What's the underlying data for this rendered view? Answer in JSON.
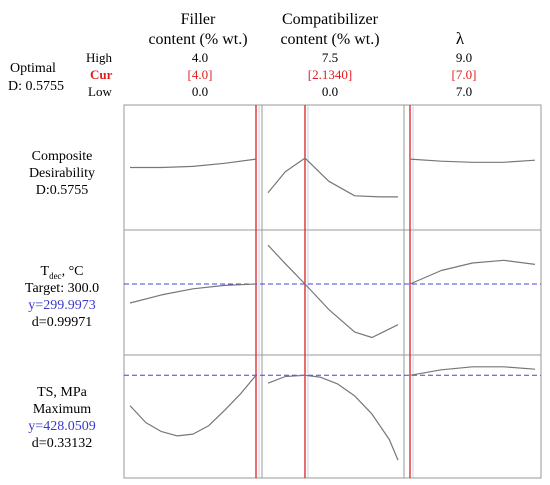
{
  "chart_data": {
    "type": "line",
    "title": "",
    "optimal_label": "Optimal",
    "optimal_d": "D: 0.5755",
    "row_labels": {
      "high": "High",
      "cur": "Cur",
      "low": "Low"
    },
    "factors": [
      {
        "name_line1": "Filler",
        "name_line2": "content (% wt.)",
        "high": "4.0",
        "cur": "[4.0]",
        "low": "0.0",
        "x_min": 0.0,
        "x_max": 4.0,
        "x_cur": 4.0
      },
      {
        "name_line1": "Compatibilizer",
        "name_line2": "content (% wt.)",
        "high": "7.5",
        "cur": "[2.1340]",
        "low": "0.0",
        "x_min": 0.0,
        "x_max": 7.5,
        "x_cur": 2.134
      },
      {
        "name_line1": "λ",
        "name_line2": "",
        "high": "9.0",
        "cur": "[7.0]",
        "low": "7.0",
        "x_min": 7.0,
        "x_max": 9.0,
        "x_cur": 7.0
      }
    ],
    "responses": [
      {
        "label_lines": [
          "Composite",
          "Desirability",
          "D:0.5755"
        ],
        "y_range": [
          0.0,
          1.0
        ],
        "ref_line": null,
        "series": [
          {
            "x": [
              0.0,
              1.0,
              2.0,
              3.0,
              4.0
            ],
            "y": [
              0.5,
              0.5,
              0.51,
              0.54,
              0.58
            ]
          },
          {
            "x": [
              0.0,
              1.0,
              2.134,
              3.5,
              5.0,
              6.5,
              7.5
            ],
            "y": [
              0.26,
              0.46,
              0.59,
              0.37,
              0.23,
              0.22,
              0.22
            ]
          },
          {
            "x": [
              7.0,
              7.5,
              8.0,
              8.5,
              9.0
            ],
            "y": [
              0.58,
              0.56,
              0.55,
              0.55,
              0.57
            ]
          }
        ]
      },
      {
        "label_lines": [
          "T",
          "Target: 300.0",
          "y=299.9973",
          "d=0.99971"
        ],
        "label_main": "T",
        "label_sub": "dec",
        "label_unit": ", °C",
        "y_range": [
          282.0,
          313.0
        ],
        "ref_line": 299.9973,
        "series": [
          {
            "x": [
              0.0,
              1.0,
              2.0,
              3.0,
              4.0
            ],
            "y": [
              294.4,
              296.8,
              298.6,
              299.6,
              300.0
            ]
          },
          {
            "x": [
              0.0,
              1.0,
              2.134,
              3.5,
              5.0,
              6.0,
              7.5
            ],
            "y": [
              311.5,
              306.0,
              300.0,
              292.5,
              285.8,
              284.2,
              288.0
            ]
          },
          {
            "x": [
              7.0,
              7.5,
              8.0,
              8.5,
              9.0
            ],
            "y": [
              300.0,
              304.0,
              306.2,
              307.0,
              305.8
            ]
          }
        ]
      },
      {
        "label_lines": [
          "TS, MPa",
          "Maximum",
          "y=428.0509",
          "d=0.33132"
        ],
        "y_range": [
          275.0,
          445.0
        ],
        "ref_line": 428.0509,
        "series": [
          {
            "x": [
              0.0,
              0.5,
              1.0,
              1.5,
              2.0,
              2.5,
              3.0,
              3.5,
              4.0
            ],
            "y": [
              378,
              350,
              335,
              328,
              331,
              345,
              370,
              397,
              428
            ]
          },
          {
            "x": [
              0.0,
              1.0,
              2.134,
              3.0,
              4.0,
              5.0,
              6.0,
              7.0,
              7.5
            ],
            "y": [
              415,
              426,
              428,
              425,
              414,
              394,
              364,
              322,
              288
            ]
          },
          {
            "x": [
              7.0,
              7.5,
              8.0,
              8.5,
              9.0
            ],
            "y": [
              428,
              437,
              442,
              442,
              438
            ]
          }
        ]
      }
    ]
  }
}
